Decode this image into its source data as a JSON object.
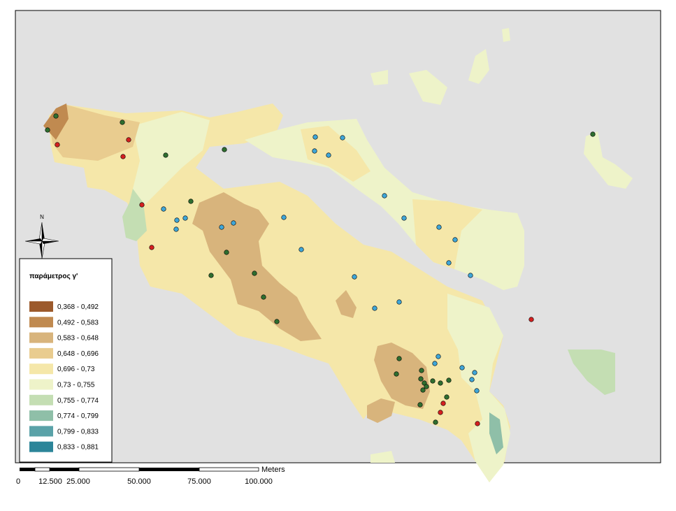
{
  "legend": {
    "title": "παράμετρος γ'",
    "items": [
      {
        "label": "0,368 - 0,492",
        "color": "#9c5a2c"
      },
      {
        "label": "0,492 - 0,583",
        "color": "#c08a50"
      },
      {
        "label": "0,583 - 0,648",
        "color": "#d8b47c"
      },
      {
        "label": "0,648 - 0,696",
        "color": "#e9cc8f"
      },
      {
        "label": "0,696 - 0,73",
        "color": "#f5e7a9"
      },
      {
        "label": "0,73 - 0,755",
        "color": "#eef3c9"
      },
      {
        "label": "0,755 - 0,774",
        "color": "#c4deb3"
      },
      {
        "label": "0,774 - 0,799",
        "color": "#8fbfa8"
      },
      {
        "label": "0,799 - 0,833",
        "color": "#5aa2a8"
      },
      {
        "label": "0,833 - 0,881",
        "color": "#2c8599"
      }
    ]
  },
  "scale_bar": {
    "unit": "Meters",
    "labels": [
      "0",
      "12.500",
      "25.000",
      "50.000",
      "75.000",
      "100.000"
    ]
  },
  "north_arrow": "N"
}
